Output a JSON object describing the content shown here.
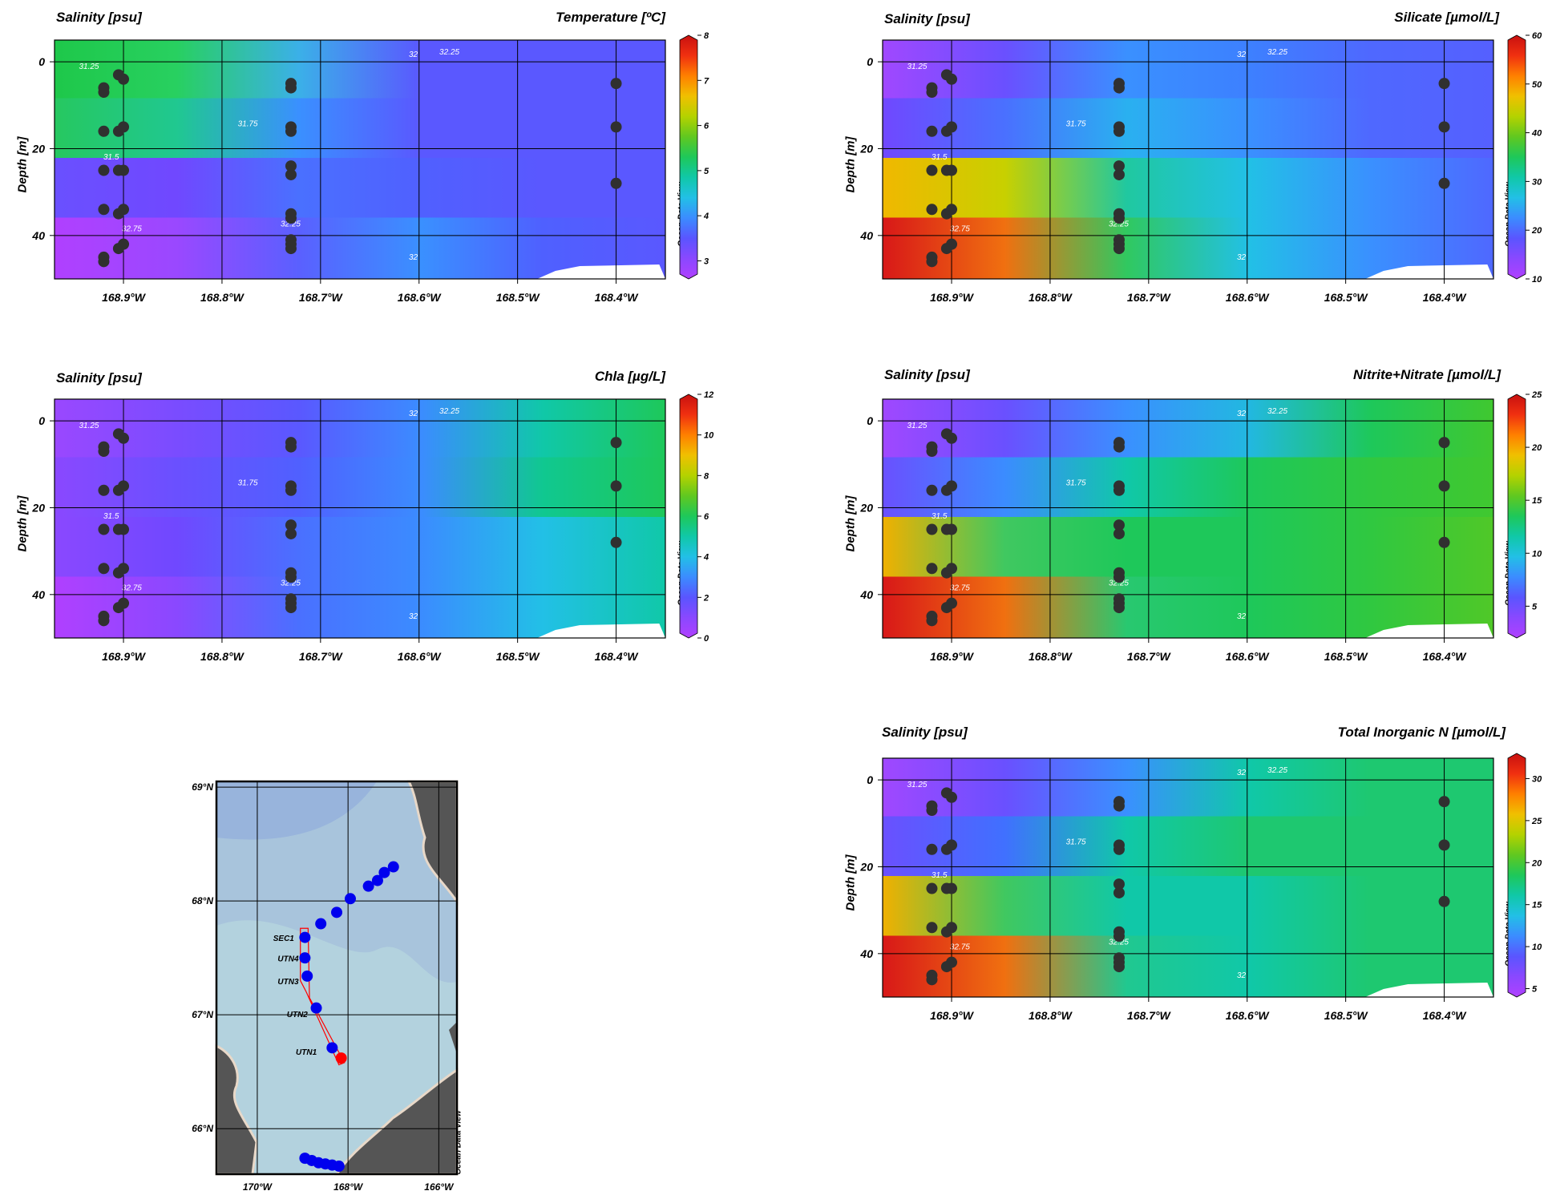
{
  "brand": "Ocean Data View",
  "colors": {
    "odv_palette": [
      "#b040ff",
      "#8a48ff",
      "#5a55ff",
      "#3b8cff",
      "#22c0e6",
      "#10c8a8",
      "#1ec85a",
      "#60c820",
      "#b4d200",
      "#f0c000",
      "#ff8000",
      "#f03010",
      "#c81010"
    ],
    "station_marker": "#303030",
    "contour": "#ffffff",
    "map_station": "#0000ee",
    "map_highlight": "#ff0000",
    "land": "#555555"
  },
  "chart_data": [
    {
      "id": "temperature",
      "type": "heatmap",
      "title_left": "Salinity [psu]",
      "title_right": "Temperature [ºC]",
      "ylabel": "Depth [m]",
      "xlabel": "",
      "x_range": [
        168.97,
        168.35
      ],
      "y_range": [
        -5,
        50
      ],
      "x_ticks": [
        "168.9°W",
        "168.8°W",
        "168.7°W",
        "168.6°W",
        "168.5°W",
        "168.4°W"
      ],
      "x_tick_values": [
        168.9,
        168.8,
        168.7,
        168.6,
        168.5,
        168.4
      ],
      "y_ticks": [
        "0",
        "20",
        "40"
      ],
      "y_tick_values": [
        0,
        20,
        40
      ],
      "colorbar_ticks": [
        "8",
        "7",
        "6",
        "5",
        "4",
        "3"
      ],
      "colorbar_range": [
        2.6,
        8
      ],
      "contour_labels": [
        "31.25",
        "31.75",
        "31.5",
        "32",
        "32.75",
        "32.25",
        "32",
        "32.25"
      ]
    },
    {
      "id": "silicate",
      "type": "heatmap",
      "title_left": "Salinity [psu]",
      "title_right": "Silicate [µmol/L]",
      "ylabel": "Depth [m]",
      "xlabel": "",
      "x_range": [
        168.97,
        168.35
      ],
      "y_range": [
        -5,
        50
      ],
      "x_ticks": [
        "168.9°W",
        "168.8°W",
        "168.7°W",
        "168.6°W",
        "168.5°W",
        "168.4°W"
      ],
      "x_tick_values": [
        168.9,
        168.8,
        168.7,
        168.6,
        168.5,
        168.4
      ],
      "y_ticks": [
        "0",
        "20",
        "40"
      ],
      "y_tick_values": [
        0,
        20,
        40
      ],
      "colorbar_ticks": [
        "60",
        "50",
        "40",
        "30",
        "20",
        "10"
      ],
      "colorbar_range": [
        10,
        60
      ],
      "contour_labels": [
        "31.25",
        "31.75",
        "31.5",
        "32",
        "32.75",
        "32.25",
        "32",
        "32.25"
      ]
    },
    {
      "id": "chla",
      "type": "heatmap",
      "title_left": "Salinity [psu]",
      "title_right": "Chla [µg/L]",
      "ylabel": "Depth [m]",
      "xlabel": "",
      "x_range": [
        168.97,
        168.35
      ],
      "y_range": [
        -5,
        50
      ],
      "x_ticks": [
        "168.9°W",
        "168.8°W",
        "168.7°W",
        "168.6°W",
        "168.5°W",
        "168.4°W"
      ],
      "x_tick_values": [
        168.9,
        168.8,
        168.7,
        168.6,
        168.5,
        168.4
      ],
      "y_ticks": [
        "0",
        "20",
        "40"
      ],
      "y_tick_values": [
        0,
        20,
        40
      ],
      "colorbar_ticks": [
        "12",
        "10",
        "8",
        "6",
        "4",
        "2",
        "0"
      ],
      "colorbar_range": [
        0,
        12
      ],
      "contour_labels": [
        "31.25",
        "31.75",
        "31.5",
        "32",
        "32.75",
        "32.25",
        "32",
        "32.25"
      ]
    },
    {
      "id": "nitrite_nitrate",
      "type": "heatmap",
      "title_left": "Salinity [psu]",
      "title_right": "Nitrite+Nitrate [µmol/L]",
      "ylabel": "Depth [m]",
      "xlabel": "",
      "x_range": [
        168.97,
        168.35
      ],
      "y_range": [
        -5,
        50
      ],
      "x_ticks": [
        "168.9°W",
        "168.8°W",
        "168.7°W",
        "168.6°W",
        "168.5°W",
        "168.4°W"
      ],
      "x_tick_values": [
        168.9,
        168.8,
        168.7,
        168.6,
        168.5,
        168.4
      ],
      "y_ticks": [
        "0",
        "20",
        "40"
      ],
      "y_tick_values": [
        0,
        20,
        40
      ],
      "colorbar_ticks": [
        "25",
        "20",
        "15",
        "10",
        "5"
      ],
      "colorbar_range": [
        2,
        25
      ],
      "contour_labels": [
        "31.25",
        "31.75",
        "31.5",
        "32",
        "32.75",
        "32.25",
        "32",
        "32.25"
      ]
    },
    {
      "id": "total_inorganic_n",
      "type": "heatmap",
      "title_left": "Salinity [psu]",
      "title_right": "Total Inorganic N [µmol/L]",
      "ylabel": "Depth [m]",
      "xlabel": "",
      "x_range": [
        168.97,
        168.35
      ],
      "y_range": [
        -5,
        50
      ],
      "x_ticks": [
        "168.9°W",
        "168.8°W",
        "168.7°W",
        "168.6°W",
        "168.5°W",
        "168.4°W"
      ],
      "x_tick_values": [
        168.9,
        168.8,
        168.7,
        168.6,
        168.5,
        168.4
      ],
      "y_ticks": [
        "0",
        "20",
        "40"
      ],
      "y_tick_values": [
        0,
        20,
        40
      ],
      "colorbar_ticks": [
        "30",
        "25",
        "20",
        "15",
        "10",
        "5"
      ],
      "colorbar_range": [
        4,
        33
      ],
      "contour_labels": [
        "31.25",
        "31.75",
        "31.5",
        "32",
        "32.75",
        "32.25",
        "32",
        "32.25"
      ]
    }
  ],
  "stations": [
    {
      "lon": 168.92,
      "depths": [
        6,
        7,
        16,
        25,
        34,
        45,
        46
      ]
    },
    {
      "lon": 168.905,
      "depths": [
        3,
        16,
        25,
        35,
        43
      ]
    },
    {
      "lon": 168.9,
      "depths": [
        4,
        15,
        25,
        34,
        42
      ]
    },
    {
      "lon": 168.73,
      "depths": [
        5,
        6,
        15,
        16,
        24,
        26,
        35,
        36,
        41,
        42,
        43
      ]
    },
    {
      "lon": 168.4,
      "depths": [
        5,
        15,
        28
      ]
    }
  ],
  "map": {
    "lat_ticks": [
      "69°N",
      "68°N",
      "67°N",
      "66°N"
    ],
    "lat_values": [
      69,
      68,
      67,
      66
    ],
    "lon_ticks": [
      "170°W",
      "168°W",
      "166°W"
    ],
    "lon_values": [
      170,
      168,
      166
    ],
    "lon_range": [
      170.9,
      165.6
    ],
    "lat_range": [
      65.6,
      69.05
    ],
    "station_labels": [
      "SEC1",
      "UTN4",
      "UTN3",
      "UTN2",
      "UTN1"
    ],
    "stations_blue": [
      {
        "lon": 167.0,
        "lat": 68.3
      },
      {
        "lon": 167.2,
        "lat": 68.25
      },
      {
        "lon": 167.35,
        "lat": 68.18
      },
      {
        "lon": 167.55,
        "lat": 68.13
      },
      {
        "lon": 167.95,
        "lat": 68.02
      },
      {
        "lon": 168.25,
        "lat": 67.9
      },
      {
        "lon": 168.6,
        "lat": 67.8
      },
      {
        "lon": 168.95,
        "lat": 67.68
      },
      {
        "lon": 168.95,
        "lat": 67.5
      },
      {
        "lon": 168.9,
        "lat": 67.34
      },
      {
        "lon": 168.7,
        "lat": 67.06
      },
      {
        "lon": 168.35,
        "lat": 66.71
      },
      {
        "lon": 168.95,
        "lat": 65.74
      },
      {
        "lon": 168.8,
        "lat": 65.72
      },
      {
        "lon": 168.65,
        "lat": 65.7
      },
      {
        "lon": 168.5,
        "lat": 65.69
      },
      {
        "lon": 168.35,
        "lat": 65.68
      },
      {
        "lon": 168.2,
        "lat": 65.67
      }
    ],
    "station_red": {
      "lon": 168.15,
      "lat": 66.62
    }
  }
}
